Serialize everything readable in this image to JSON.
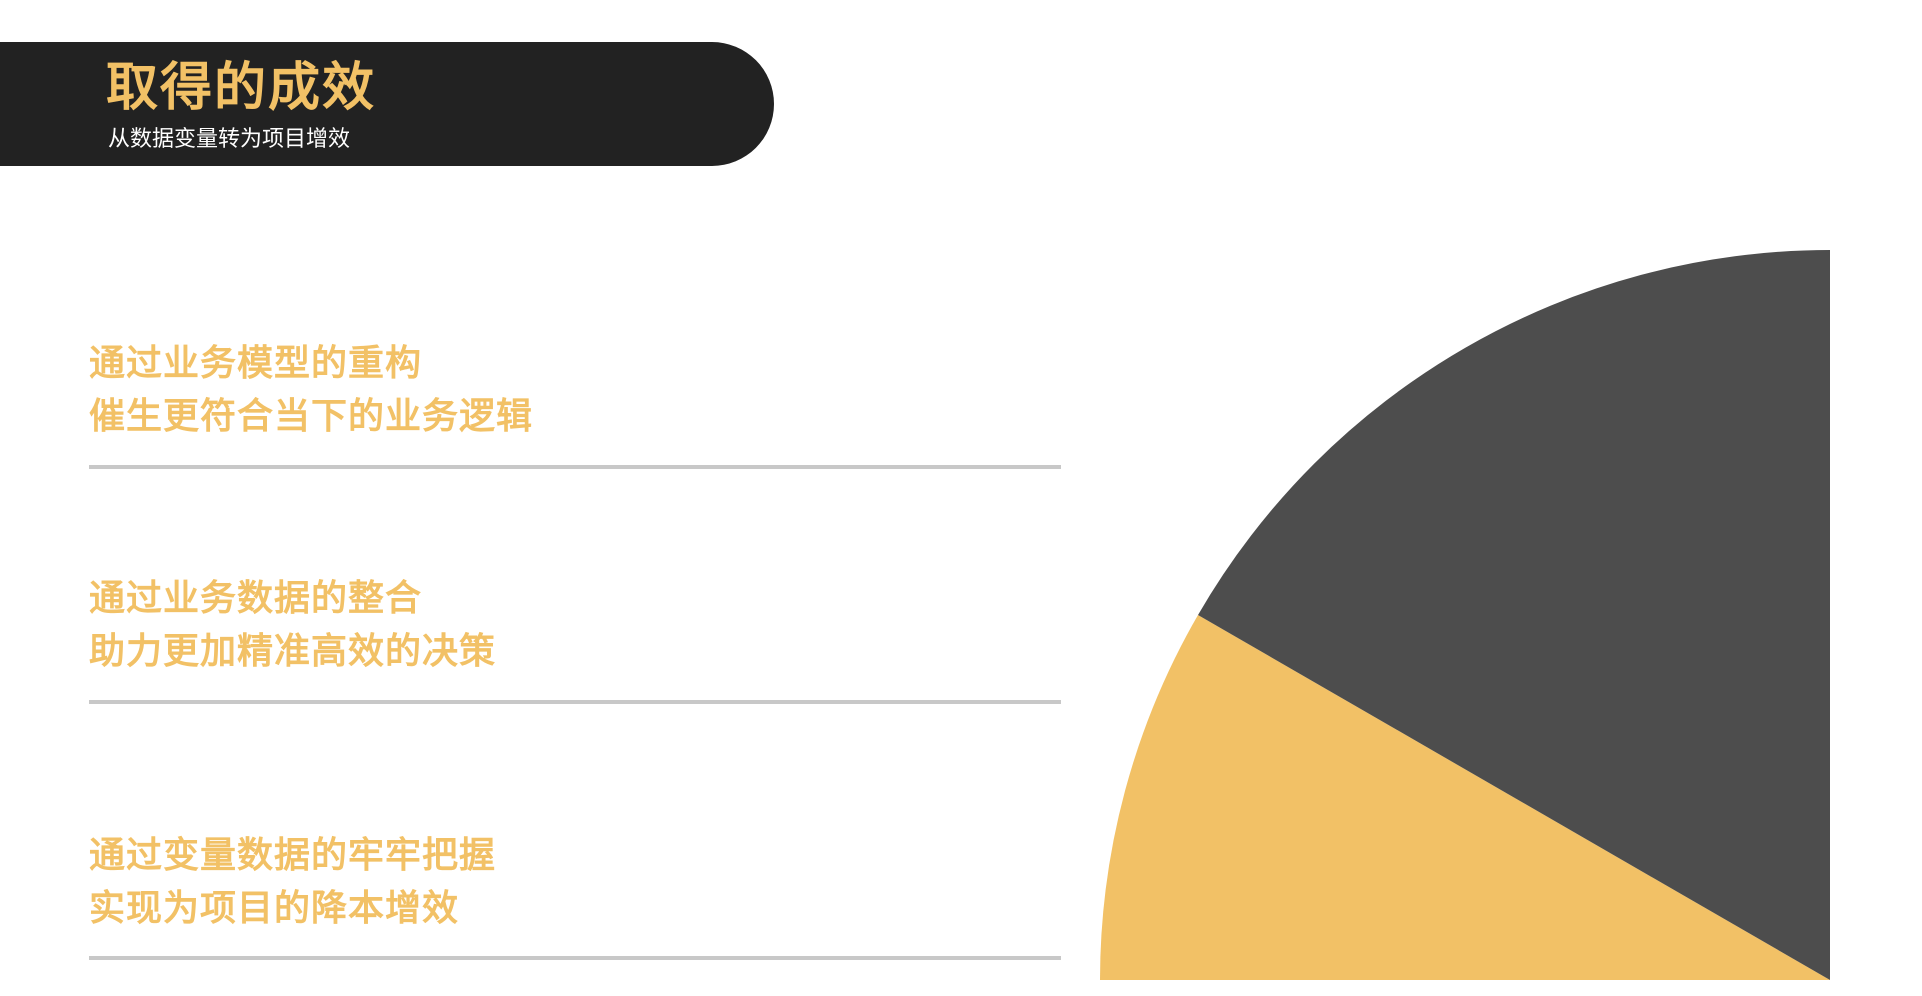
{
  "header": {
    "title": "取得的成效",
    "subtitle": "从数据变量转为项目增效"
  },
  "items": [
    {
      "line1": "通过业务模型的重构",
      "line2": "催生更符合当下的业务逻辑"
    },
    {
      "line1": "通过业务数据的整合",
      "line2": "助力更加精准高效的决策"
    },
    {
      "line1": "通过变量数据的牢牢把握",
      "line2": "实现为项目的降本增效"
    }
  ],
  "colors": {
    "accent": "#f2c166",
    "dark": "#222222",
    "wedge_dark": "#4d4d4d",
    "divider": "#c8c8c8"
  }
}
